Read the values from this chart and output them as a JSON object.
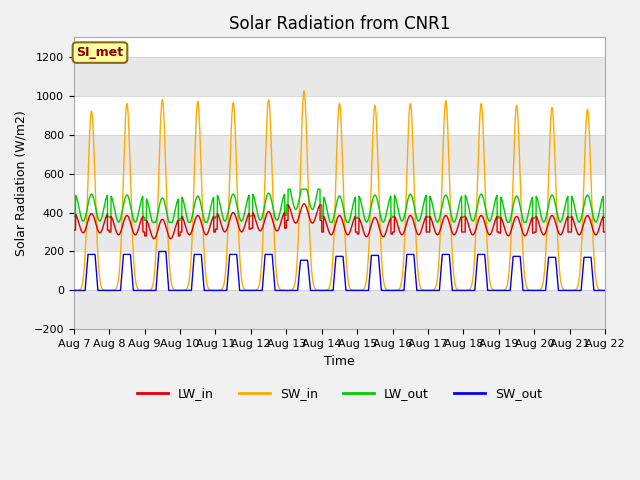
{
  "title": "Solar Radiation from CNR1",
  "xlabel": "Time",
  "ylabel": "Solar Radiation (W/m2)",
  "ylim": [
    -200,
    1300
  ],
  "yticks": [
    -200,
    0,
    200,
    400,
    600,
    800,
    1000,
    1200
  ],
  "n_days": 15,
  "fig_bg_color": "#f0f0f0",
  "plot_bg_color": "#ffffff",
  "band_colors": [
    "#e8e8e8",
    "#ffffff"
  ],
  "legend_label": "SI_met",
  "series_colors": {
    "LW_in": "#dd0000",
    "SW_in": "#ffaa00",
    "LW_out": "#00cc00",
    "SW_out": "#0000ee"
  },
  "x_tick_labels": [
    "Aug 7",
    "Aug 8",
    "Aug 9",
    "Aug 10",
    "Aug 11",
    "Aug 12",
    "Aug 13",
    "Aug 14",
    "Aug 15",
    "Aug 16",
    "Aug 17",
    "Aug 18",
    "Aug 19",
    "Aug 20",
    "Aug 21",
    "Aug 22"
  ],
  "title_fontsize": 12,
  "axis_fontsize": 9,
  "tick_fontsize": 8,
  "legend_fontsize": 9,
  "sw_in_peaks": [
    920,
    960,
    980,
    970,
    965,
    980,
    1025,
    960,
    950,
    960,
    975,
    960,
    950,
    940,
    930
  ],
  "sw_out_peaks": [
    185,
    185,
    200,
    185,
    185,
    185,
    155,
    175,
    180,
    185,
    185,
    185,
    175,
    170,
    170
  ],
  "lw_in_bases": [
    340,
    330,
    310,
    330,
    345,
    350,
    390,
    330,
    320,
    330,
    330,
    330,
    325,
    330,
    330
  ],
  "lw_out_bases": [
    400,
    395,
    380,
    390,
    400,
    405,
    460,
    390,
    395,
    400,
    395,
    400,
    390,
    395,
    395
  ]
}
